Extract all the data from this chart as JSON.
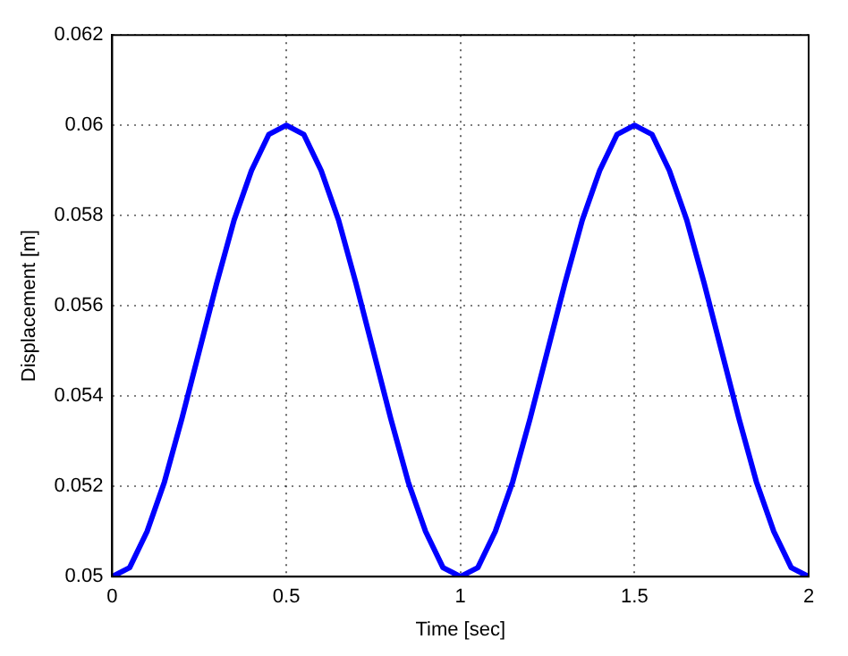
{
  "chart_data": {
    "type": "line",
    "xlabel": "Time [sec]",
    "ylabel": "Displacement [m]",
    "x": [
      0,
      0.05,
      0.1,
      0.15,
      0.2,
      0.25,
      0.3,
      0.35,
      0.4,
      0.45,
      0.5,
      0.55,
      0.6,
      0.65,
      0.7,
      0.75,
      0.8,
      0.85,
      0.9,
      0.95,
      1,
      1.05,
      1.1,
      1.15,
      1.2,
      1.25,
      1.3,
      1.35,
      1.4,
      1.45,
      1.5,
      1.55,
      1.6,
      1.65,
      1.7,
      1.75,
      1.8,
      1.85,
      1.9,
      1.95,
      2
    ],
    "series": [
      {
        "color": "#0000ff",
        "values": [
          0.05,
          0.0502,
          0.051,
          0.0521,
          0.0535,
          0.055,
          0.0565,
          0.0579,
          0.059,
          0.0598,
          0.06,
          0.0598,
          0.059,
          0.0579,
          0.0565,
          0.055,
          0.0535,
          0.0521,
          0.051,
          0.0502,
          0.05,
          0.0502,
          0.051,
          0.0521,
          0.0535,
          0.055,
          0.0565,
          0.0579,
          0.059,
          0.0598,
          0.06,
          0.0598,
          0.059,
          0.0579,
          0.0565,
          0.055,
          0.0535,
          0.0521,
          0.051,
          0.0502,
          0.05
        ]
      }
    ],
    "xlim": [
      0,
      2
    ],
    "xticks": [
      0,
      0.5,
      1,
      1.5,
      2
    ],
    "ylim": [
      0.05,
      0.062
    ],
    "yticks": [
      0.05,
      0.052,
      0.054,
      0.056,
      0.058,
      0.06,
      0.062
    ],
    "grid": true,
    "marker": "none",
    "line_style": "solid",
    "legend": false
  }
}
